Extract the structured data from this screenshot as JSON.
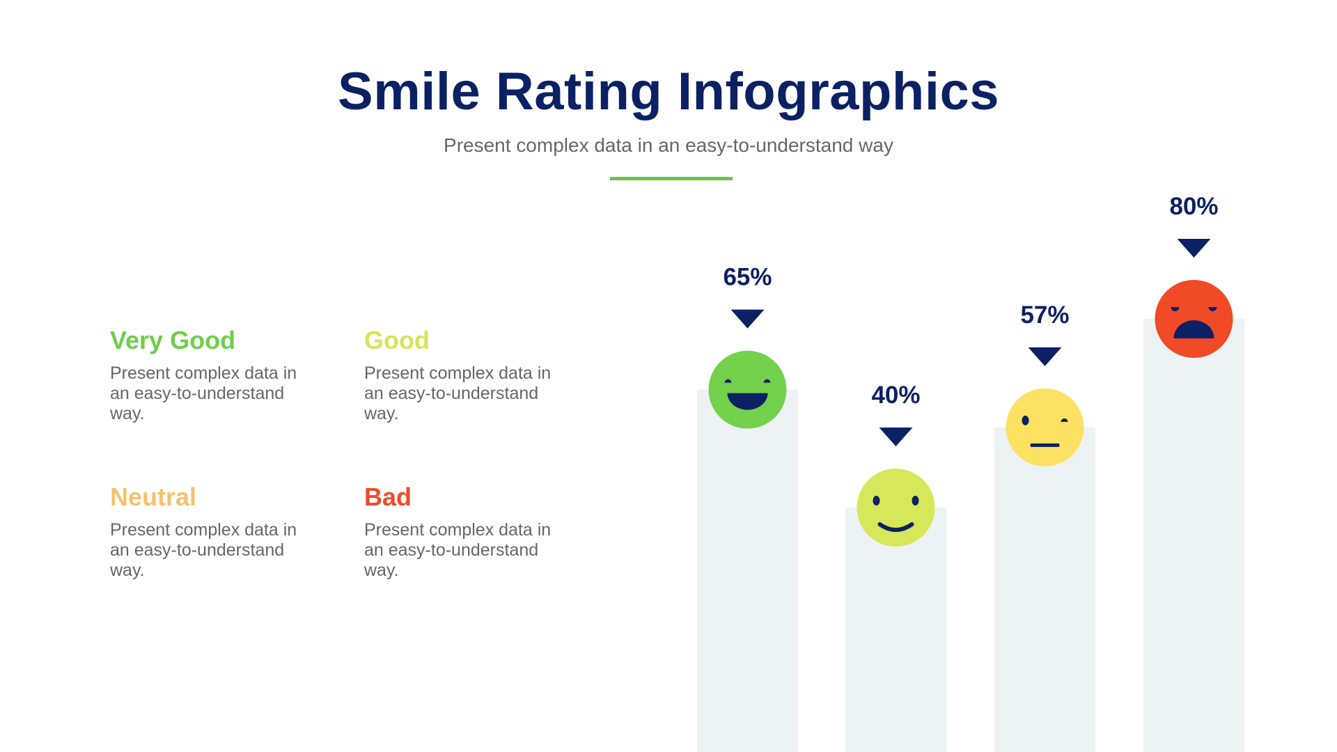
{
  "header": {
    "title": "Smile Rating Infographics",
    "subtitle": "Present complex data in an easy-to-understand way"
  },
  "legend": [
    {
      "label": "Very Good",
      "text": "Present complex data in an easy-to-understand way.",
      "color": "#6fce4b"
    },
    {
      "label": "Good",
      "text": "Present complex data in an easy-to-understand way.",
      "color": "#d4e65a"
    },
    {
      "label": "Neutral",
      "text": "Present complex data in an easy-to-understand way.",
      "color": "#f6c26d"
    },
    {
      "label": "Bad",
      "text": "Present complex data in an easy-to-understand way.",
      "color": "#ec4b27"
    }
  ],
  "chart_data": {
    "type": "bar",
    "categories": [
      "Very Good",
      "Good",
      "Neutral",
      "Bad"
    ],
    "values": [
      65,
      40,
      57,
      80
    ],
    "labels": [
      "65%",
      "40%",
      "57%",
      "80%"
    ],
    "faces": [
      "laughing",
      "smiling",
      "neutral",
      "angry"
    ],
    "face_colors": [
      "#74d14c",
      "#d6e85a",
      "#fde163",
      "#f04a27"
    ],
    "bar_color": "#edf2f4",
    "marker_color": "#0b2163"
  }
}
